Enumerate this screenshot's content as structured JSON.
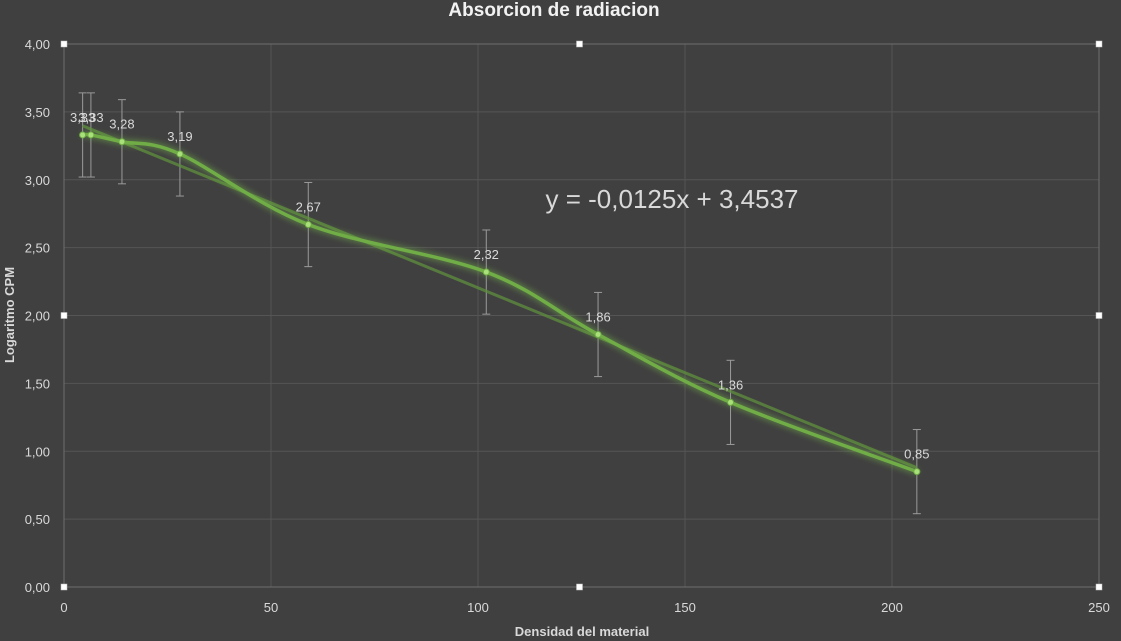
{
  "chart_data": {
    "type": "scatter",
    "title": "Absorcion de radiacion",
    "xlabel": "Densidad del material",
    "ylabel": "Logaritmo CPM",
    "xlim": [
      0,
      250
    ],
    "ylim": [
      0,
      4
    ],
    "x_ticks": [
      "0",
      "50",
      "100",
      "150",
      "200",
      "250"
    ],
    "y_ticks": [
      "0,00",
      "0,50",
      "1,00",
      "1,50",
      "2,00",
      "2,50",
      "3,00",
      "3,50",
      "4,00"
    ],
    "grid": true,
    "smoothed_line": true,
    "error_bar": 0.31,
    "series": [
      {
        "x": [
          4.5,
          6.5,
          14,
          28,
          59,
          102,
          129,
          161,
          206
        ],
        "y": [
          3.33,
          3.33,
          3.28,
          3.19,
          2.67,
          2.32,
          1.86,
          1.36,
          0.85
        ],
        "labels": [
          "3,33",
          "3,33",
          "3,28",
          "3,19",
          "2,67",
          "2,32",
          "1,86",
          "1,36",
          "0,85"
        ],
        "color": "#70ad47"
      }
    ],
    "trendline": {
      "type": "linear",
      "slope": -0.0125,
      "intercept": 3.4537,
      "equation": "y = -0,0125x + 3,4537"
    }
  }
}
